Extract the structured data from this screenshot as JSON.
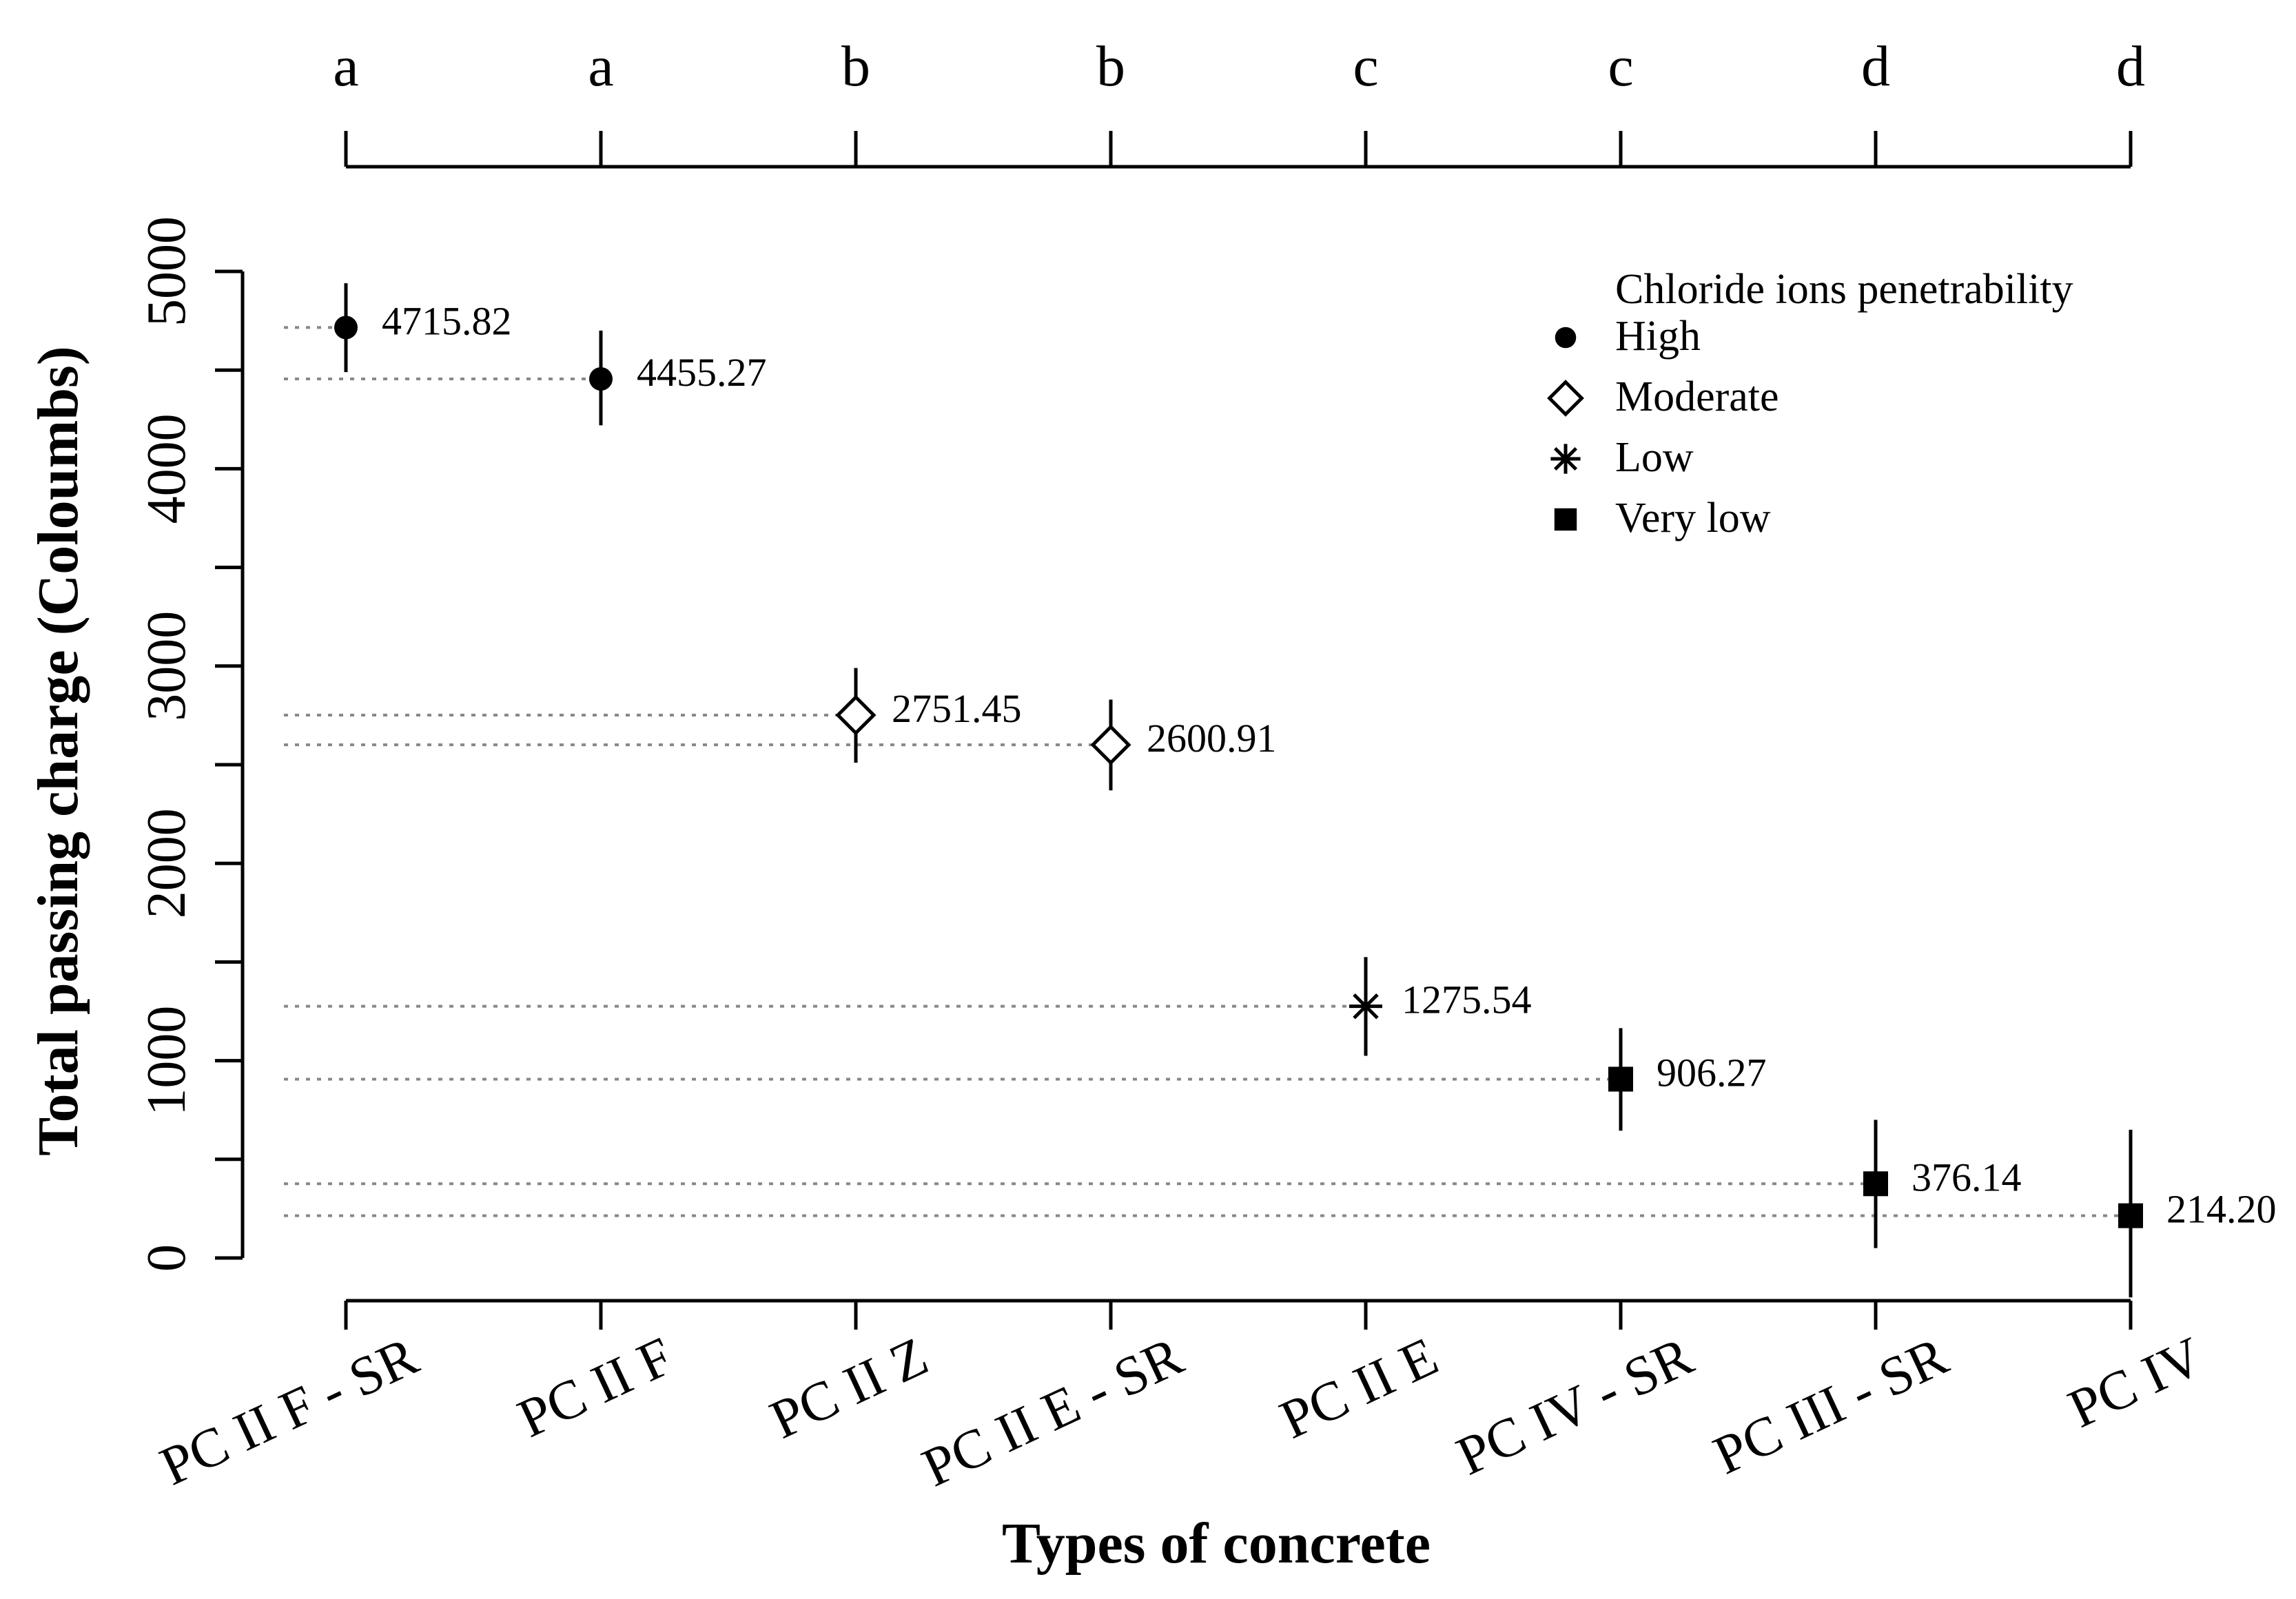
{
  "chart_data": {
    "type": "scatter",
    "title": "",
    "xlabel": "Types of concrete",
    "ylabel": "Total passing charge (Coloumbs)",
    "ylim": [
      0,
      5000
    ],
    "yticks": [
      0,
      1000,
      2000,
      3000,
      4000,
      5000
    ],
    "categories": [
      "PC II F - SR",
      "PC II F",
      "PC II Z",
      "PC II E - SR",
      "PC II E",
      "PC IV - SR",
      "PC III - SR",
      "PC IV"
    ],
    "values": [
      4715.82,
      4455.27,
      2751.45,
      2600.91,
      1275.54,
      906.27,
      376.14,
      214.2
    ],
    "value_labels": [
      "4715.82",
      "4455.27",
      "2751.45",
      "2600.91",
      "1275.54",
      "906.27",
      "376.14",
      "214.20"
    ],
    "error_low": [
      4490,
      4220,
      2510,
      2370,
      1025,
      645,
      50,
      -200
    ],
    "error_high": [
      4940,
      4700,
      2990,
      2830,
      1525,
      1165,
      700,
      650
    ],
    "group_letters": [
      "a",
      "a",
      "b",
      "b",
      "c",
      "c",
      "d",
      "d"
    ],
    "classes": [
      "High",
      "High",
      "Moderate",
      "Moderate",
      "Low",
      "Very low",
      "Very low",
      "Very low"
    ],
    "legend": {
      "title": "Chloride ions penetrability",
      "position": "top-right",
      "entries": [
        {
          "label": "High",
          "marker": "circle-icon"
        },
        {
          "label": "Moderate",
          "marker": "diamond-icon"
        },
        {
          "label": "Low",
          "marker": "asterisk-icon"
        },
        {
          "label": "Very low",
          "marker": "square-icon"
        }
      ]
    },
    "reference_lines": "dotted"
  }
}
